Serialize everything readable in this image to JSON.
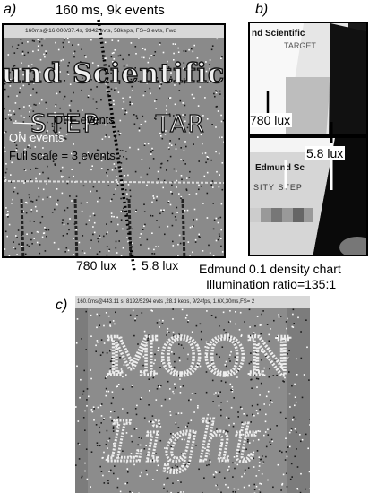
{
  "panel_a": {
    "letter": "a)",
    "header_caption": "160 ms, 9k events",
    "titlebar": "160ms@16.000/37.4s, 9342 evts, 58keps, FS=3 evts,   Fwd",
    "scene_text_top": "und Scientific",
    "scene_text_mid_left": "STEP",
    "scene_text_mid_right": "TAR",
    "off_label": "OFF events",
    "on_label": "ON events",
    "scale_label": "Full scale = 3 events",
    "lux_left": "780 lux",
    "lux_right": "5.8 lux"
  },
  "panel_b": {
    "letter": "b)",
    "top_text_1": "nd Scientific",
    "top_text_2": "TARGET",
    "bot_text_1": "Edmund Sc",
    "bot_text_2": "SITY STEP",
    "lux_left": "780 lux",
    "lux_right": "5.8 lux",
    "caption_line1": "Edmund 0.1 density chart",
    "caption_line2": "Illumination ratio=135:1"
  },
  "panel_c": {
    "letter": "c)",
    "titlebar": "160.0ms@443.11  s, 8192/5294  evts ,28.1 keps, 9/24fps, 1.6X,30ms,FS= 2",
    "word_top": "MOON",
    "word_bottom": "Light"
  },
  "colors": {
    "event_gray": "#8a8a8a",
    "on_event": "#ffffff",
    "off_event": "#1a1a1a"
  }
}
